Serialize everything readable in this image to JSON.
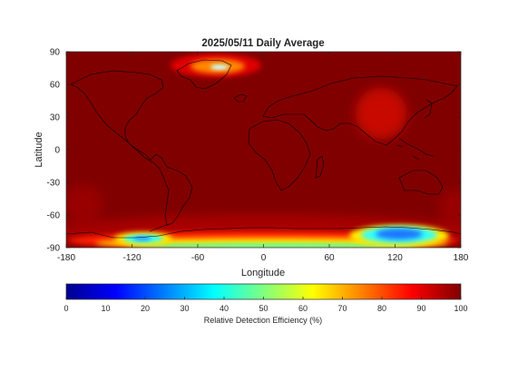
{
  "title": "2025/05/11 Daily Average",
  "x_axis": {
    "label": "Longitude",
    "range": [
      -180,
      180
    ],
    "ticks": [
      "-180",
      "-120",
      "-60",
      "0",
      "60",
      "120",
      "180"
    ]
  },
  "y_axis": {
    "label": "Latitude",
    "range": [
      -90,
      90
    ],
    "ticks": [
      "90",
      "60",
      "30",
      "0",
      "-30",
      "-60",
      "-90"
    ]
  },
  "colorbar": {
    "label": "Relative Detection Efficiency (%)",
    "range": [
      0,
      100
    ],
    "ticks": [
      "0",
      "10",
      "20",
      "30",
      "40",
      "50",
      "60",
      "70",
      "80",
      "90",
      "100"
    ],
    "colormap": "jet"
  },
  "map": {
    "background_value_pct": 100,
    "coastlines": true
  },
  "colors": {
    "background_dark_red": "#800000",
    "coastline": "#000000",
    "axis_text": "#262626"
  }
}
